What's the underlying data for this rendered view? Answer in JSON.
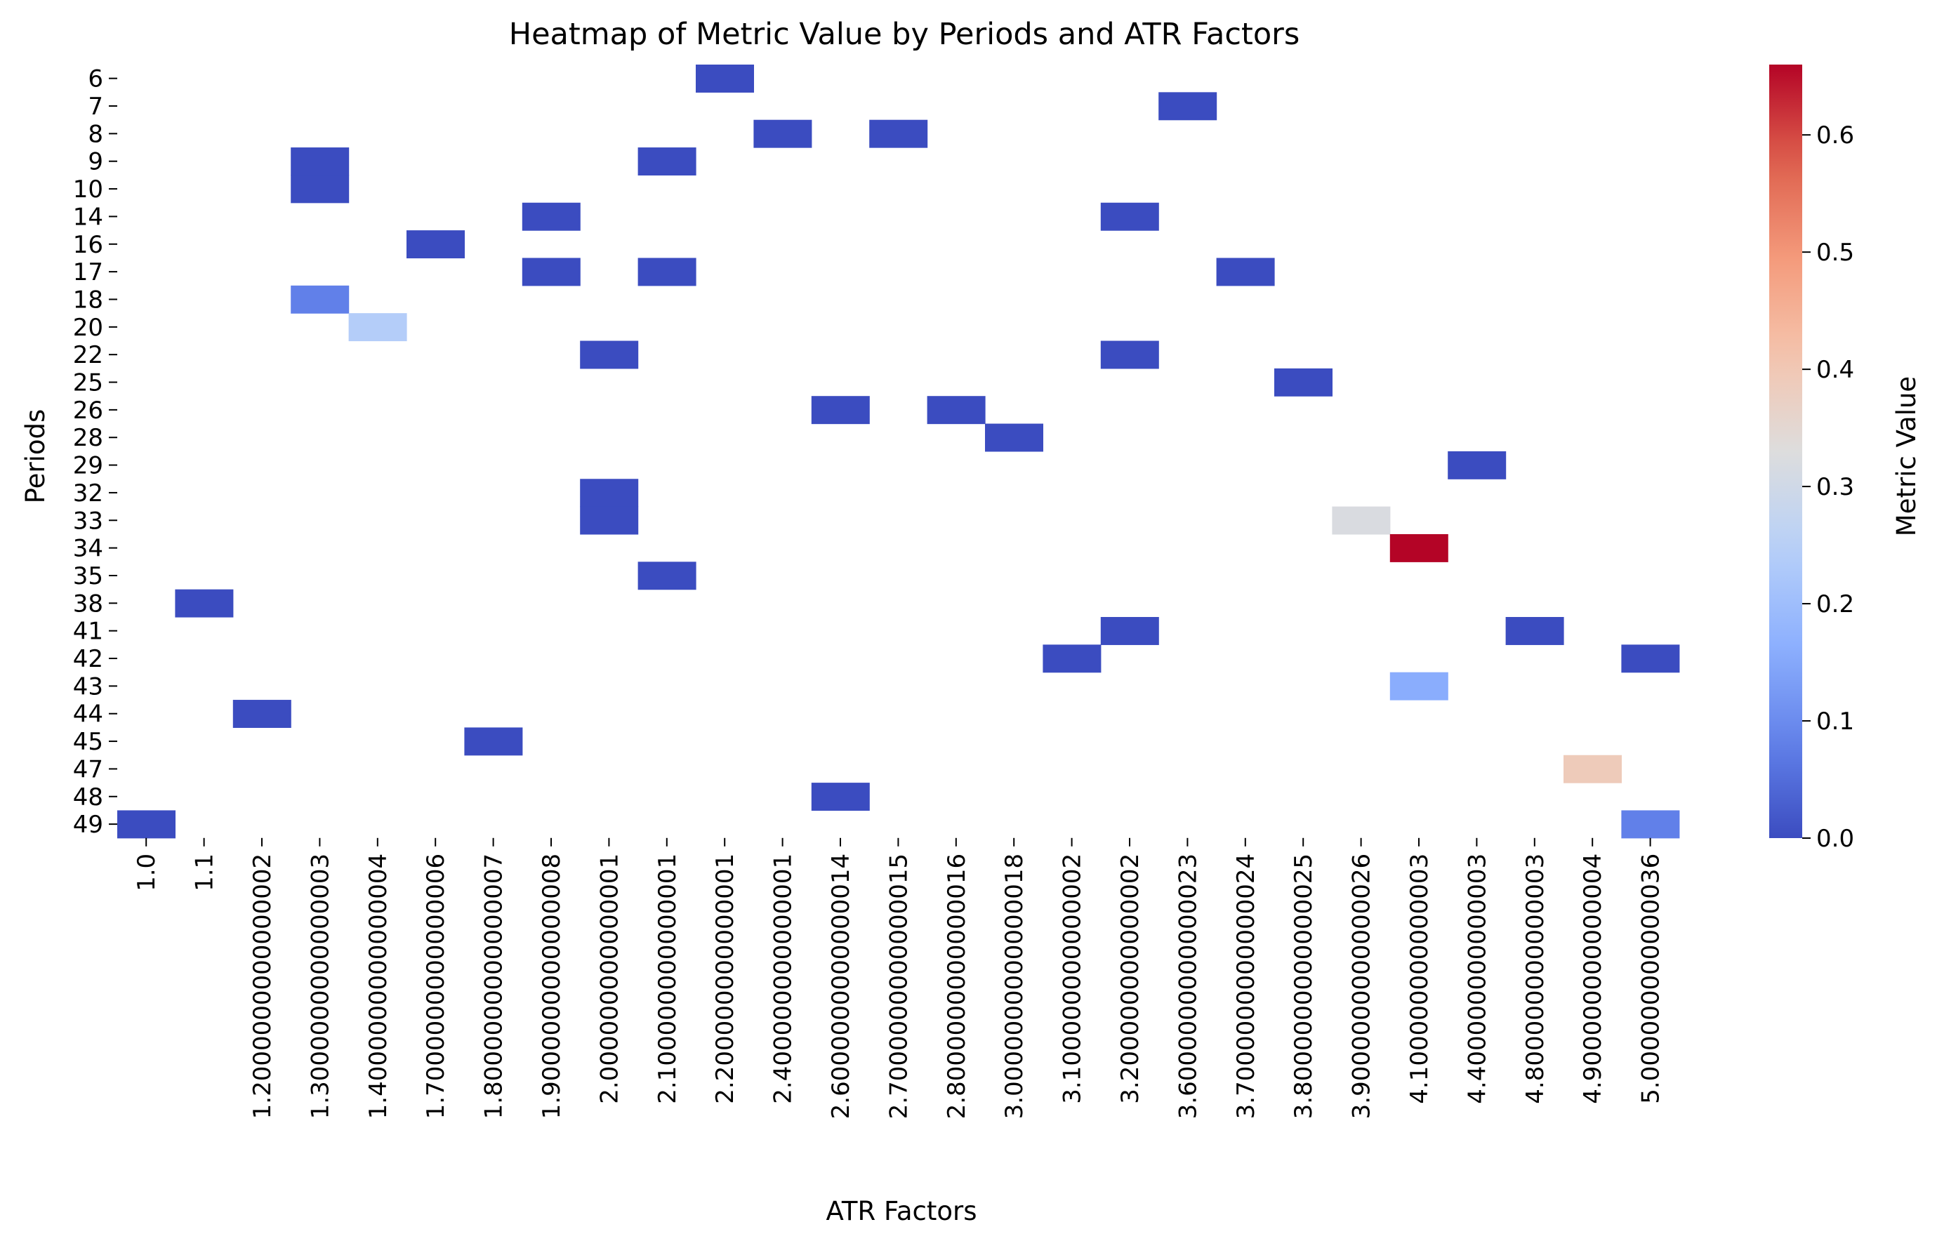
{
  "chart_data": {
    "type": "heatmap",
    "title": "Heatmap of Metric Value by Periods and ATR Factors",
    "xlabel": "ATR Factors",
    "ylabel": "Periods",
    "colorbar_label": "Metric Value",
    "colormap": "coolwarm",
    "color_range": [
      0.0,
      0.66
    ],
    "colorbar_ticks": [
      "0.0",
      "0.1",
      "0.2",
      "0.3",
      "0.4",
      "0.5",
      "0.6"
    ],
    "x_categories": [
      "1.0",
      "1.1",
      "1.2000000000000002",
      "1.3000000000000003",
      "1.4000000000000004",
      "1.7000000000000006",
      "1.8000000000000007",
      "1.9000000000000008",
      "2.000000000000001",
      "2.100000000000001",
      "2.200000000000001",
      "2.400000000000001",
      "2.6000000000000014",
      "2.7000000000000015",
      "2.8000000000000016",
      "3.0000000000000018",
      "3.100000000000002",
      "3.200000000000002",
      "3.6000000000000023",
      "3.7000000000000024",
      "3.8000000000000025",
      "3.9000000000000026",
      "4.100000000000003",
      "4.400000000000003",
      "4.800000000000003",
      "4.900000000000004",
      "5.000000000000036"
    ],
    "y_categories": [
      "6",
      "7",
      "8",
      "9",
      "10",
      "14",
      "16",
      "17",
      "18",
      "20",
      "22",
      "25",
      "26",
      "28",
      "29",
      "32",
      "33",
      "34",
      "35",
      "38",
      "41",
      "42",
      "43",
      "44",
      "45",
      "47",
      "48",
      "49"
    ],
    "cells": [
      {
        "x": "2.200000000000001",
        "y": "6",
        "value": 0.0
      },
      {
        "x": "3.6000000000000023",
        "y": "7",
        "value": 0.0
      },
      {
        "x": "2.400000000000001",
        "y": "8",
        "value": 0.0
      },
      {
        "x": "2.7000000000000015",
        "y": "8",
        "value": 0.0
      },
      {
        "x": "1.3000000000000003",
        "y": "9",
        "value": 0.0
      },
      {
        "x": "2.100000000000001",
        "y": "9",
        "value": 0.0
      },
      {
        "x": "1.3000000000000003",
        "y": "10",
        "value": 0.0
      },
      {
        "x": "1.9000000000000008",
        "y": "14",
        "value": 0.0
      },
      {
        "x": "3.200000000000002",
        "y": "14",
        "value": 0.0
      },
      {
        "x": "1.7000000000000006",
        "y": "16",
        "value": 0.0
      },
      {
        "x": "1.9000000000000008",
        "y": "17",
        "value": 0.0
      },
      {
        "x": "2.100000000000001",
        "y": "17",
        "value": 0.0
      },
      {
        "x": "3.7000000000000024",
        "y": "17",
        "value": 0.0
      },
      {
        "x": "1.3000000000000003",
        "y": "18",
        "value": 0.08
      },
      {
        "x": "1.4000000000000004",
        "y": "20",
        "value": 0.24
      },
      {
        "x": "2.000000000000001",
        "y": "22",
        "value": 0.0
      },
      {
        "x": "3.200000000000002",
        "y": "22",
        "value": 0.0
      },
      {
        "x": "3.8000000000000025",
        "y": "25",
        "value": 0.0
      },
      {
        "x": "2.6000000000000014",
        "y": "26",
        "value": 0.0
      },
      {
        "x": "2.8000000000000016",
        "y": "26",
        "value": 0.0
      },
      {
        "x": "3.0000000000000018",
        "y": "28",
        "value": 0.0
      },
      {
        "x": "4.400000000000003",
        "y": "29",
        "value": 0.0
      },
      {
        "x": "2.000000000000001",
        "y": "32",
        "value": 0.0
      },
      {
        "x": "2.000000000000001",
        "y": "33",
        "value": 0.0
      },
      {
        "x": "3.9000000000000026",
        "y": "33",
        "value": 0.32
      },
      {
        "x": "4.100000000000003",
        "y": "34",
        "value": 0.66
      },
      {
        "x": "2.100000000000001",
        "y": "35",
        "value": 0.0
      },
      {
        "x": "1.1",
        "y": "38",
        "value": 0.0
      },
      {
        "x": "3.200000000000002",
        "y": "41",
        "value": 0.0
      },
      {
        "x": "4.800000000000003",
        "y": "41",
        "value": 0.0
      },
      {
        "x": "3.100000000000002",
        "y": "42",
        "value": 0.0
      },
      {
        "x": "5.000000000000036",
        "y": "42",
        "value": 0.0
      },
      {
        "x": "4.100000000000003",
        "y": "43",
        "value": 0.16
      },
      {
        "x": "1.2000000000000002",
        "y": "44",
        "value": 0.0
      },
      {
        "x": "1.8000000000000007",
        "y": "45",
        "value": 0.0
      },
      {
        "x": "4.900000000000004",
        "y": "47",
        "value": 0.39
      },
      {
        "x": "2.6000000000000014",
        "y": "48",
        "value": 0.0
      },
      {
        "x": "1.0",
        "y": "49",
        "value": 0.0
      },
      {
        "x": "5.000000000000036",
        "y": "49",
        "value": 0.08
      }
    ]
  }
}
